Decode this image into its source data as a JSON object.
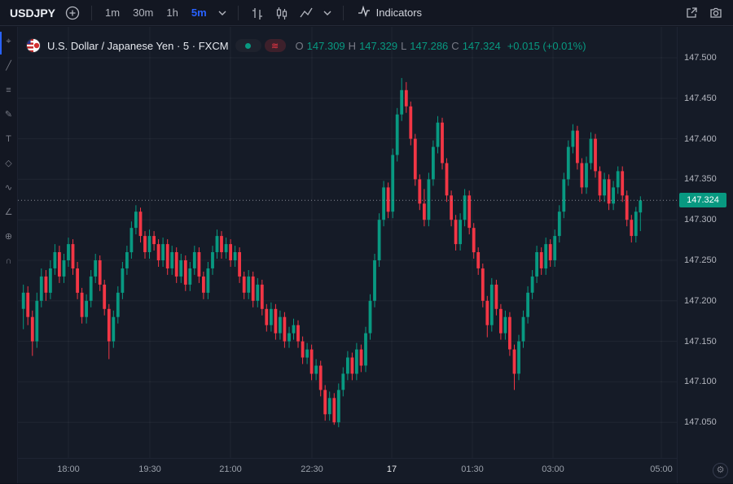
{
  "toolbar": {
    "symbol": "USDJPY",
    "timeframes": [
      "1m",
      "30m",
      "1h",
      "5m"
    ],
    "active_timeframe": "5m",
    "indicators_label": "Indicators"
  },
  "sidebar": {
    "tools": [
      {
        "name": "crosshair-tool",
        "glyph": "⌖"
      },
      {
        "name": "trend-line-tool",
        "glyph": "╱"
      },
      {
        "name": "fib-retracement-tool",
        "glyph": "≡"
      },
      {
        "name": "brush-tool",
        "glyph": "✎"
      },
      {
        "name": "text-tool",
        "glyph": "T"
      },
      {
        "name": "patterns-tool",
        "glyph": "◇"
      },
      {
        "name": "forecast-tool",
        "glyph": "∿"
      },
      {
        "name": "measure-tool",
        "glyph": "∠"
      },
      {
        "name": "zoom-tool",
        "glyph": "⊕"
      },
      {
        "name": "magnet-tool",
        "glyph": "∩"
      }
    ]
  },
  "legend": {
    "title": "U.S. Dollar / Japanese Yen · 5 · FXCM",
    "delayed_glyph": "≋",
    "o_label": "O",
    "o_value": "147.309",
    "h_label": "H",
    "h_value": "147.329",
    "l_label": "L",
    "l_value": "147.286",
    "c_label": "C",
    "c_value": "147.324",
    "change": "+0.015 (+0.01%)"
  },
  "price_axis": {
    "labels": [
      "147.500",
      "147.450",
      "147.400",
      "147.350",
      "147.300",
      "147.250",
      "147.200",
      "147.150",
      "147.100",
      "147.050"
    ],
    "current_price_label": "147.324"
  },
  "time_axis": {
    "labels": [
      "18:00",
      "19:30",
      "21:00",
      "22:30",
      "17",
      "01:30",
      "03:00",
      "05:00"
    ],
    "emphasized": "17"
  },
  "colors": {
    "up": "#089981",
    "down": "#f23645",
    "accent": "#2962ff",
    "price_tag_bg": "#089981",
    "grid": "rgba(255,255,255,0.05)",
    "dotted_line": "#9598a1"
  },
  "chart_data": {
    "type": "candlestick",
    "title": "U.S. Dollar / Japanese Yen",
    "interval": "5m",
    "source": "FXCM",
    "start_time": "17:10",
    "step_minutes": 5,
    "ylim": [
      147.025,
      147.525
    ],
    "price_ticks": [
      147.5,
      147.45,
      147.4,
      147.35,
      147.3,
      147.25,
      147.2,
      147.15,
      147.1,
      147.05
    ],
    "time_ticks": [
      "18:00",
      "19:30",
      "21:00",
      "22:30",
      "17",
      "01:30",
      "03:00",
      "05:00"
    ],
    "current_price": 147.324,
    "session_high": 147.475,
    "session_low": 147.044,
    "ohlc": [
      [
        147.19,
        147.22,
        147.165,
        147.21
      ],
      [
        147.21,
        147.218,
        147.17,
        147.18
      ],
      [
        147.18,
        147.188,
        147.132,
        147.15
      ],
      [
        147.15,
        147.21,
        147.142,
        147.2
      ],
      [
        147.2,
        147.24,
        147.192,
        147.23
      ],
      [
        147.23,
        147.238,
        147.2,
        147.21
      ],
      [
        147.21,
        147.25,
        147.202,
        147.24
      ],
      [
        147.24,
        147.27,
        147.232,
        147.26
      ],
      [
        147.26,
        147.268,
        147.222,
        147.23
      ],
      [
        147.23,
        147.258,
        147.222,
        147.25
      ],
      [
        147.25,
        147.278,
        147.242,
        147.27
      ],
      [
        147.27,
        147.276,
        147.232,
        147.24
      ],
      [
        147.24,
        147.248,
        147.202,
        147.21
      ],
      [
        147.21,
        147.216,
        147.172,
        147.18
      ],
      [
        147.18,
        147.208,
        147.172,
        147.2
      ],
      [
        147.2,
        147.238,
        147.192,
        147.23
      ],
      [
        147.23,
        147.258,
        147.222,
        147.25
      ],
      [
        147.25,
        147.256,
        147.212,
        147.22
      ],
      [
        147.22,
        147.226,
        147.182,
        147.19
      ],
      [
        147.19,
        147.196,
        147.128,
        147.15
      ],
      [
        147.15,
        147.188,
        147.142,
        147.18
      ],
      [
        147.18,
        147.218,
        147.172,
        147.21
      ],
      [
        147.21,
        147.248,
        147.202,
        147.24
      ],
      [
        147.24,
        147.268,
        147.232,
        147.26
      ],
      [
        147.26,
        147.298,
        147.252,
        147.29
      ],
      [
        147.29,
        147.318,
        147.282,
        147.31
      ],
      [
        147.31,
        147.315,
        147.272,
        147.28
      ],
      [
        147.28,
        147.286,
        147.252,
        147.26
      ],
      [
        147.26,
        147.288,
        147.252,
        147.28
      ],
      [
        147.28,
        147.286,
        147.262,
        147.27
      ],
      [
        147.27,
        147.276,
        147.242,
        147.25
      ],
      [
        147.25,
        147.278,
        147.242,
        147.27
      ],
      [
        147.27,
        147.276,
        147.232,
        147.24
      ],
      [
        147.24,
        147.268,
        147.232,
        147.26
      ],
      [
        147.26,
        147.266,
        147.222,
        147.23
      ],
      [
        147.23,
        147.258,
        147.222,
        147.25
      ],
      [
        147.25,
        147.256,
        147.212,
        147.22
      ],
      [
        147.22,
        147.248,
        147.212,
        147.24
      ],
      [
        147.24,
        147.268,
        147.232,
        147.26
      ],
      [
        147.26,
        147.266,
        147.222,
        147.23
      ],
      [
        147.23,
        147.236,
        147.202,
        147.21
      ],
      [
        147.21,
        147.248,
        147.202,
        147.24
      ],
      [
        147.24,
        147.268,
        147.232,
        147.26
      ],
      [
        147.26,
        147.288,
        147.252,
        147.28
      ],
      [
        147.28,
        147.286,
        147.252,
        147.26
      ],
      [
        147.26,
        147.278,
        147.252,
        147.27
      ],
      [
        147.27,
        147.276,
        147.242,
        147.25
      ],
      [
        147.25,
        147.268,
        147.242,
        147.26
      ],
      [
        147.26,
        147.266,
        147.222,
        147.23
      ],
      [
        147.23,
        147.236,
        147.202,
        147.21
      ],
      [
        147.21,
        147.238,
        147.202,
        147.23
      ],
      [
        147.23,
        147.236,
        147.192,
        147.2
      ],
      [
        147.2,
        147.228,
        147.192,
        147.22
      ],
      [
        147.22,
        147.226,
        147.182,
        147.19
      ],
      [
        147.19,
        147.196,
        147.162,
        147.17
      ],
      [
        147.17,
        147.198,
        147.162,
        147.19
      ],
      [
        147.19,
        147.196,
        147.152,
        147.16
      ],
      [
        147.16,
        147.188,
        147.152,
        147.18
      ],
      [
        147.18,
        147.186,
        147.142,
        147.15
      ],
      [
        147.15,
        147.168,
        147.142,
        147.16
      ],
      [
        147.16,
        147.178,
        147.152,
        147.17
      ],
      [
        147.17,
        147.176,
        147.142,
        147.15
      ],
      [
        147.15,
        147.156,
        147.122,
        147.13
      ],
      [
        147.13,
        147.148,
        147.122,
        147.14
      ],
      [
        147.14,
        147.146,
        147.102,
        147.11
      ],
      [
        147.11,
        147.128,
        147.102,
        147.12
      ],
      [
        147.12,
        147.126,
        147.082,
        147.09
      ],
      [
        147.09,
        147.096,
        147.052,
        147.06
      ],
      [
        147.06,
        147.088,
        147.052,
        147.08
      ],
      [
        147.08,
        147.086,
        147.047,
        147.05
      ],
      [
        147.05,
        147.098,
        147.044,
        147.09
      ],
      [
        147.09,
        147.118,
        147.082,
        147.11
      ],
      [
        147.11,
        147.138,
        147.102,
        147.13
      ],
      [
        147.13,
        147.136,
        147.102,
        147.11
      ],
      [
        147.11,
        147.148,
        147.102,
        147.14
      ],
      [
        147.14,
        147.146,
        147.112,
        147.12
      ],
      [
        147.12,
        147.168,
        147.112,
        147.16
      ],
      [
        147.16,
        147.208,
        147.152,
        147.2
      ],
      [
        147.2,
        147.258,
        147.192,
        147.25
      ],
      [
        147.25,
        147.308,
        147.242,
        147.3
      ],
      [
        147.3,
        147.348,
        147.292,
        147.34
      ],
      [
        147.34,
        147.346,
        147.302,
        147.31
      ],
      [
        147.31,
        147.388,
        147.302,
        147.38
      ],
      [
        147.38,
        147.438,
        147.372,
        147.43
      ],
      [
        147.43,
        147.475,
        147.422,
        147.46
      ],
      [
        147.46,
        147.47,
        147.432,
        147.44
      ],
      [
        147.44,
        147.446,
        147.392,
        147.4
      ],
      [
        147.4,
        147.406,
        147.342,
        147.35
      ],
      [
        147.35,
        147.356,
        147.312,
        147.32
      ],
      [
        147.32,
        147.338,
        147.292,
        147.3
      ],
      [
        147.3,
        147.358,
        147.292,
        147.35
      ],
      [
        147.35,
        147.398,
        147.342,
        147.39
      ],
      [
        147.39,
        147.428,
        147.382,
        147.42
      ],
      [
        147.42,
        147.426,
        147.362,
        147.37
      ],
      [
        147.37,
        147.376,
        147.322,
        147.33
      ],
      [
        147.33,
        147.336,
        147.292,
        147.3
      ],
      [
        147.3,
        147.306,
        147.262,
        147.27
      ],
      [
        147.27,
        147.308,
        147.262,
        147.3
      ],
      [
        147.3,
        147.338,
        147.292,
        147.33
      ],
      [
        147.33,
        147.336,
        147.282,
        147.29
      ],
      [
        147.29,
        147.296,
        147.252,
        147.26
      ],
      [
        147.26,
        147.266,
        147.232,
        147.24
      ],
      [
        147.24,
        147.246,
        147.192,
        147.2
      ],
      [
        147.2,
        147.206,
        147.155,
        147.17
      ],
      [
        147.17,
        147.228,
        147.162,
        147.22
      ],
      [
        147.22,
        147.226,
        147.182,
        147.19
      ],
      [
        147.19,
        147.196,
        147.152,
        147.16
      ],
      [
        147.16,
        147.188,
        147.152,
        147.18
      ],
      [
        147.18,
        147.186,
        147.132,
        147.14
      ],
      [
        147.14,
        147.146,
        147.09,
        147.11
      ],
      [
        147.11,
        147.158,
        147.102,
        147.15
      ],
      [
        147.15,
        147.188,
        147.142,
        147.18
      ],
      [
        147.18,
        147.218,
        147.172,
        147.21
      ],
      [
        147.21,
        147.238,
        147.202,
        147.23
      ],
      [
        147.23,
        147.268,
        147.222,
        147.26
      ],
      [
        147.26,
        147.266,
        147.232,
        147.24
      ],
      [
        147.24,
        147.278,
        147.232,
        147.27
      ],
      [
        147.27,
        147.276,
        147.242,
        147.25
      ],
      [
        147.25,
        147.288,
        147.242,
        147.28
      ],
      [
        147.28,
        147.318,
        147.272,
        147.31
      ],
      [
        147.31,
        147.358,
        147.302,
        147.35
      ],
      [
        147.35,
        147.398,
        147.342,
        147.39
      ],
      [
        147.39,
        147.418,
        147.382,
        147.41
      ],
      [
        147.41,
        147.416,
        147.362,
        147.37
      ],
      [
        147.37,
        147.376,
        147.332,
        147.34
      ],
      [
        147.34,
        147.378,
        147.332,
        147.37
      ],
      [
        147.37,
        147.408,
        147.362,
        147.4
      ],
      [
        147.4,
        147.406,
        147.352,
        147.36
      ],
      [
        147.36,
        147.366,
        147.322,
        147.33
      ],
      [
        147.33,
        147.358,
        147.322,
        147.35
      ],
      [
        147.35,
        147.356,
        147.312,
        147.32
      ],
      [
        147.32,
        147.348,
        147.312,
        147.34
      ],
      [
        147.34,
        147.366,
        147.332,
        147.36
      ],
      [
        147.36,
        147.366,
        147.322,
        147.33
      ],
      [
        147.33,
        147.336,
        147.292,
        147.3
      ],
      [
        147.3,
        147.306,
        147.272,
        147.28
      ],
      [
        147.28,
        147.316,
        147.272,
        147.31
      ],
      [
        147.309,
        147.329,
        147.286,
        147.324
      ]
    ]
  }
}
